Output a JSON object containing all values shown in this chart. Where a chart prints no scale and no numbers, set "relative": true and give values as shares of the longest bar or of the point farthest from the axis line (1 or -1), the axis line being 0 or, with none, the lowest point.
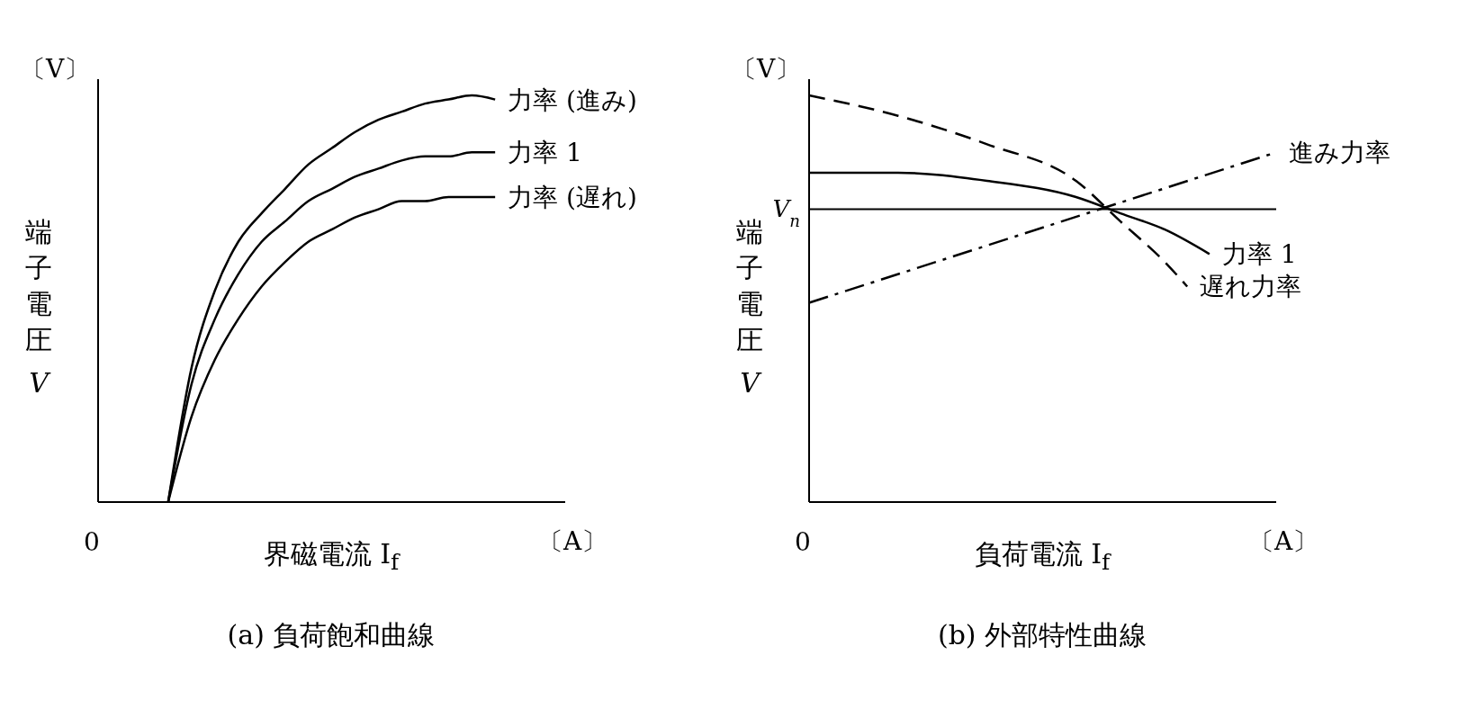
{
  "chart_data": [
    {
      "type": "line",
      "title": "(a) 負荷飽和曲線",
      "xlabel": "界磁電流 I$_{f}$",
      "ylabel": "端子電圧 V",
      "annotations": [
        "〔V〕",
        "〔A〕",
        "0"
      ],
      "relative": true,
      "categories": [
        null,
        null,
        null,
        null,
        null,
        null,
        null,
        null,
        null,
        null,
        null,
        null,
        null,
        null,
        null,
        null,
        null,
        null,
        null,
        null,
        null
      ],
      "series": [
        {
          "name": "力率 (進み)",
          "color": "#000000",
          "values": [
            null,
            null,
            null,
            0,
            0.33,
            0.52,
            0.64,
            0.71,
            0.77,
            0.83,
            0.87,
            0.91,
            0.94,
            0.96,
            0.98,
            0.99,
            1.0,
            0.99,
            null,
            null,
            null
          ]
        },
        {
          "name": "力率 1",
          "color": "#000000",
          "values": [
            null,
            null,
            null,
            0,
            0.29,
            0.45,
            0.56,
            0.64,
            0.69,
            0.74,
            0.77,
            0.8,
            0.82,
            0.84,
            0.85,
            0.85,
            0.86,
            0.86,
            null,
            null,
            null
          ]
        },
        {
          "name": "力率 (遅れ)",
          "color": "#000000",
          "values": [
            null,
            null,
            null,
            0,
            0.21,
            0.35,
            0.45,
            0.53,
            0.59,
            0.64,
            0.67,
            0.7,
            0.72,
            0.74,
            0.74,
            0.75,
            0.75,
            0.75,
            null,
            null,
            null
          ]
        }
      ]
    },
    {
      "type": "line",
      "title": "(b) 外部特性曲線",
      "xlabel": "負荷電流 I$_{f}$",
      "ylabel": "端子電圧 V",
      "annotations": [
        "〔V〕",
        "〔A〕",
        "0"
      ],
      "relative": true,
      "categories": [
        null,
        null,
        null,
        null,
        null,
        null,
        null,
        null,
        null,
        null,
        null,
        null,
        null,
        null,
        null,
        null,
        null,
        null,
        null,
        null,
        null,
        null
      ],
      "ref_lines": [
        {
          "axis": "y",
          "value": 0.72,
          "label": "V$_{n}$"
        }
      ],
      "series": [
        {
          "name": "進み力率",
          "color": "#000000",
          "line_style": "dashdot",
          "values": [
            0.49,
            null,
            null,
            null,
            null,
            null,
            null,
            null,
            null,
            null,
            null,
            null,
            null,
            null,
            null,
            null,
            null,
            null,
            null,
            null,
            null,
            0.86
          ]
        },
        {
          "name": "力率 1",
          "color": "#000000",
          "line_style": "solid",
          "values": [
            0.81,
            null,
            null,
            null,
            0.81,
            null,
            null,
            null,
            0.79,
            null,
            null,
            null,
            0.75,
            null,
            0.71,
            null,
            0.67,
            null,
            0.61,
            null,
            null,
            null
          ]
        },
        {
          "name": "遅れ力率",
          "color": "#000000",
          "line_style": "dashed",
          "values": [
            1.0,
            null,
            null,
            null,
            0.95,
            null,
            null,
            null,
            0.88,
            null,
            null,
            null,
            0.79,
            null,
            0.69,
            null,
            0.59,
            0.53,
            null,
            null,
            null,
            null
          ]
        }
      ]
    }
  ]
}
